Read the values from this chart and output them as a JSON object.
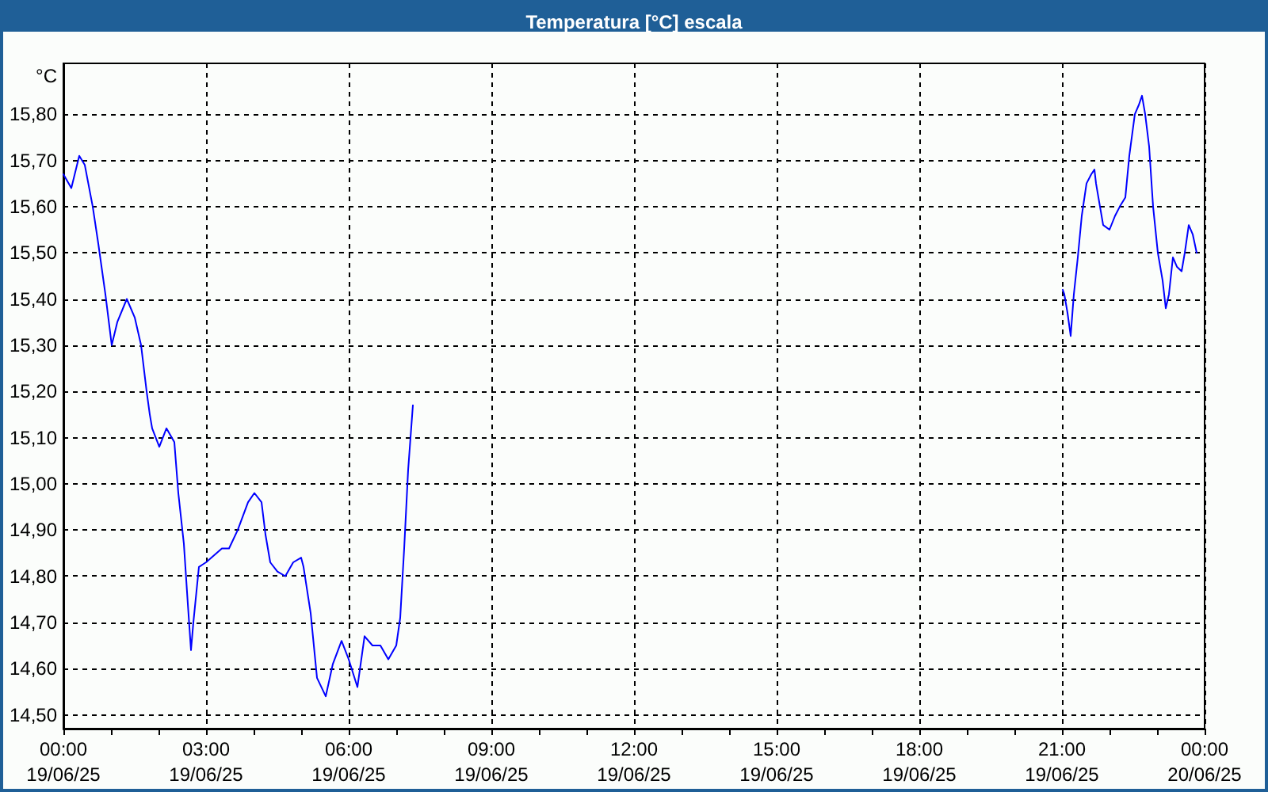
{
  "chart_data": {
    "type": "line",
    "title": "Temperatura [°C] escala",
    "ylabel": "°C",
    "x": [
      "--06-19T00:00",
      "--06-19T00:10",
      "--06-19T00:20",
      "--06-19T00:27",
      "--06-19T00:37",
      "--06-19T00:44",
      "--06-19T00:53",
      "--06-19T01:01",
      "--06-19T01:08",
      "--06-19T01:20",
      "--06-19T01:30",
      "--06-19T01:38",
      "--06-19T01:45",
      "--06-19T01:49",
      "--06-19T01:52",
      "--06-19T02:01",
      "--06-19T02:10",
      "--06-19T02:20",
      "--06-19T02:25",
      "--06-19T02:32",
      "--06-19T02:37",
      "--06-19T02:41",
      "--06-19T02:44",
      "--06-19T02:51",
      "--06-19T03:00",
      "--06-19T03:20",
      "--06-19T03:29",
      "--06-19T03:40",
      "--06-19T03:53",
      "--06-19T04:01",
      "--06-19T04:10",
      "--06-19T04:15",
      "--06-19T04:21",
      "--06-19T04:30",
      "--06-19T04:40",
      "--06-19T04:50",
      "--06-19T05:00",
      "--06-19T05:03",
      "--06-19T05:12",
      "--06-19T05:20",
      "--06-19T05:31",
      "--06-19T05:40",
      "--06-19T05:51",
      "--06-19T06:00",
      "--06-19T06:11",
      "--06-19T06:20",
      "--06-19T06:30",
      "--06-19T06:40",
      "--06-19T06:50",
      "--06-19T07:00",
      "--06-19T07:05",
      "--06-19T07:10",
      "--06-19T07:15",
      "--06-19T07:21",
      "--06-19T07:31",
      "--06-19T21:01",
      "--06-19T21:03",
      "--06-19T21:07",
      "--06-19T21:11",
      "--06-19T21:15",
      "--06-19T21:20",
      "--06-19T21:25",
      "--06-19T21:31",
      "--06-19T21:37",
      "--06-19T21:41",
      "--06-19T21:43",
      "--06-19T21:48",
      "--06-19T21:52",
      "--06-19T22:00",
      "--06-19T22:07",
      "--06-19T22:13",
      "--06-19T22:20",
      "--06-19T22:25",
      "--06-19T22:32",
      "--06-19T22:37",
      "--06-19T22:41",
      "--06-19T22:45",
      "--06-19T22:50",
      "--06-19T22:55",
      "--06-19T23:01",
      "--06-19T23:07",
      "--06-19T23:11",
      "--06-19T23:15",
      "--06-19T23:20",
      "--06-19T23:25",
      "--06-19T23:31",
      "--06-19T23:35",
      "--06-19T23:40",
      "--06-19T23:45",
      "--06-19T23:50"
    ],
    "values": [
      15.67,
      15.64,
      15.71,
      15.69,
      15.6,
      15.52,
      15.41,
      15.3,
      15.35,
      15.4,
      15.36,
      15.3,
      15.2,
      15.15,
      15.12,
      15.08,
      15.12,
      15.09,
      14.98,
      14.87,
      14.74,
      14.64,
      14.7,
      14.82,
      14.83,
      14.86,
      14.86,
      14.9,
      14.96,
      14.98,
      14.96,
      14.89,
      14.83,
      14.81,
      14.8,
      14.83,
      14.84,
      14.82,
      14.72,
      14.58,
      14.54,
      14.61,
      14.66,
      14.62,
      14.56,
      14.67,
      14.65,
      14.65,
      14.62,
      14.65,
      14.71,
      14.86,
      15.03,
      15.17,
      null,
      15.42,
      15.41,
      15.37,
      15.32,
      15.41,
      15.49,
      15.58,
      15.65,
      15.67,
      15.68,
      15.65,
      15.6,
      15.56,
      15.55,
      15.58,
      15.6,
      15.62,
      15.71,
      15.8,
      15.82,
      15.84,
      15.8,
      15.73,
      15.6,
      15.5,
      15.44,
      15.38,
      15.41,
      15.49,
      15.47,
      15.46,
      15.5,
      15.56,
      15.54,
      15.5
    ],
    "color": "#0000ff",
    "xlim": [
      "--06-19T00:00",
      "--06-20T00:00"
    ],
    "xticks": [
      {
        "value": "--06-19T00:00",
        "label": "00:00\n19/06/25"
      },
      {
        "value": "--06-19T01:00",
        "label": null
      },
      {
        "value": "--06-19T02:00",
        "label": null
      },
      {
        "value": "--06-19T03:00",
        "label": "03:00\n19/06/25"
      },
      {
        "value": "--06-19T04:00",
        "label": null
      },
      {
        "value": "--06-19T05:00",
        "label": null
      },
      {
        "value": "--06-19T06:00",
        "label": "06:00\n19/06/25"
      },
      {
        "value": "--06-19T07:00",
        "label": null
      },
      {
        "value": "--06-19T08:00",
        "label": null
      },
      {
        "value": "--06-19T09:00",
        "label": "09:00\n19/06/25"
      },
      {
        "value": "--06-19T10:00",
        "label": null
      },
      {
        "value": "--06-19T11:00",
        "label": null
      },
      {
        "value": "--06-19T12:00",
        "label": "12:00\n19/06/25"
      },
      {
        "value": "--06-19T13:00",
        "label": null
      },
      {
        "value": "--06-19T14:00",
        "label": null
      },
      {
        "value": "--06-19T15:00",
        "label": "15:00\n19/06/25"
      },
      {
        "value": "--06-19T16:00",
        "label": null
      },
      {
        "value": "--06-19T17:00",
        "label": null
      },
      {
        "value": "--06-19T18:00",
        "label": "18:00\n19/06/25"
      },
      {
        "value": "--06-19T19:00",
        "label": null
      },
      {
        "value": "--06-19T20:00",
        "label": null
      },
      {
        "value": "--06-19T21:00",
        "label": "21:00\n19/06/25"
      },
      {
        "value": "--06-19T22:00",
        "label": null
      },
      {
        "value": "--06-19T23:00",
        "label": null
      },
      {
        "value": "--06-20T00:00",
        "label": "00:00\n20/06/25"
      }
    ],
    "ylim": [
      14.47,
      15.91
    ],
    "yticks": [
      {
        "value": 14.5,
        "label": "14,50"
      },
      {
        "value": 14.6,
        "label": "14,60"
      },
      {
        "value": 14.7,
        "label": "14,70"
      },
      {
        "value": 14.8,
        "label": "14,80"
      },
      {
        "value": 14.9,
        "label": "14,90"
      },
      {
        "value": 15.0,
        "label": "15,00"
      },
      {
        "value": 15.1,
        "label": "15,10"
      },
      {
        "value": 15.2,
        "label": "15,20"
      },
      {
        "value": 15.3,
        "label": "15,30"
      },
      {
        "value": 15.4,
        "label": "15,40"
      },
      {
        "value": 15.5,
        "label": "15,50"
      },
      {
        "value": 15.6,
        "label": "15,60"
      },
      {
        "value": 15.7,
        "label": "15,70"
      },
      {
        "value": 15.8,
        "label": "15,80"
      }
    ],
    "grid": true
  }
}
